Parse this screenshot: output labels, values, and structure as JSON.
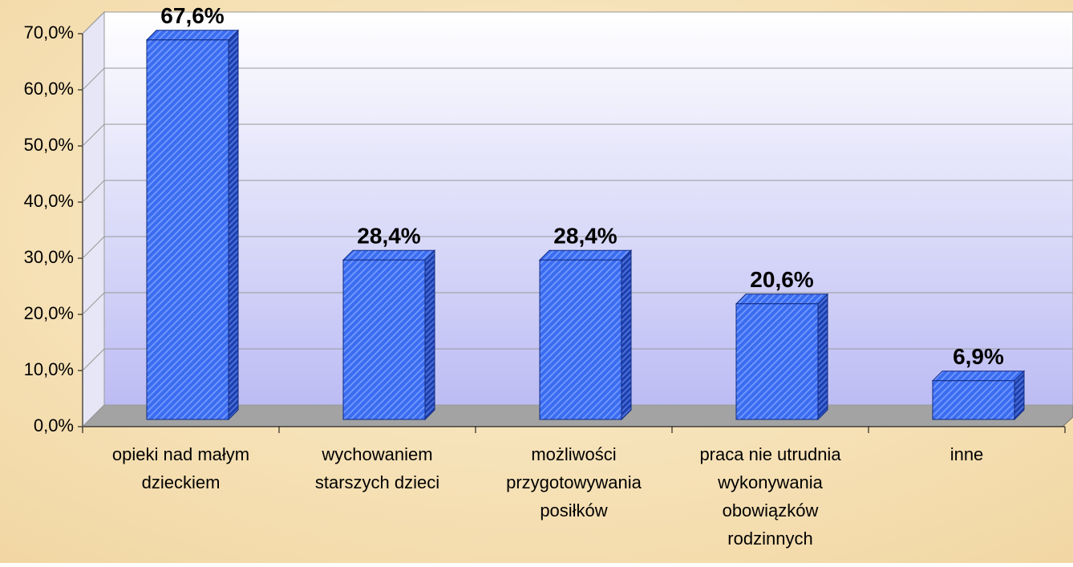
{
  "chart_data": {
    "type": "bar",
    "categories": [
      [
        "opieki nad małym",
        "dzieckiem"
      ],
      [
        "wychowaniem",
        "starszych dzieci"
      ],
      [
        "możliwości",
        "przygotowywania",
        "posiłków"
      ],
      [
        "praca nie utrudnia",
        "wykonywania",
        "obowiązków",
        "rodzinnych"
      ],
      [
        "inne"
      ]
    ],
    "values": [
      67.6,
      28.4,
      28.4,
      20.6,
      6.9
    ],
    "value_labels": [
      "67,6%",
      "28,4%",
      "28,4%",
      "20,6%",
      "6,9%"
    ],
    "color": "#3a6cf0",
    "ylim": [
      0,
      70
    ],
    "yticks": [
      {
        "value": 0,
        "label": "0,0%"
      },
      {
        "value": 10,
        "label": "10,0%"
      },
      {
        "value": 20,
        "label": "20,0%"
      },
      {
        "value": 30,
        "label": "30,0%"
      },
      {
        "value": 40,
        "label": "40,0%"
      },
      {
        "value": 50,
        "label": "50,0%"
      },
      {
        "value": 60,
        "label": "60,0%"
      },
      {
        "value": 70,
        "label": "70,0%"
      }
    ],
    "grid": true
  }
}
